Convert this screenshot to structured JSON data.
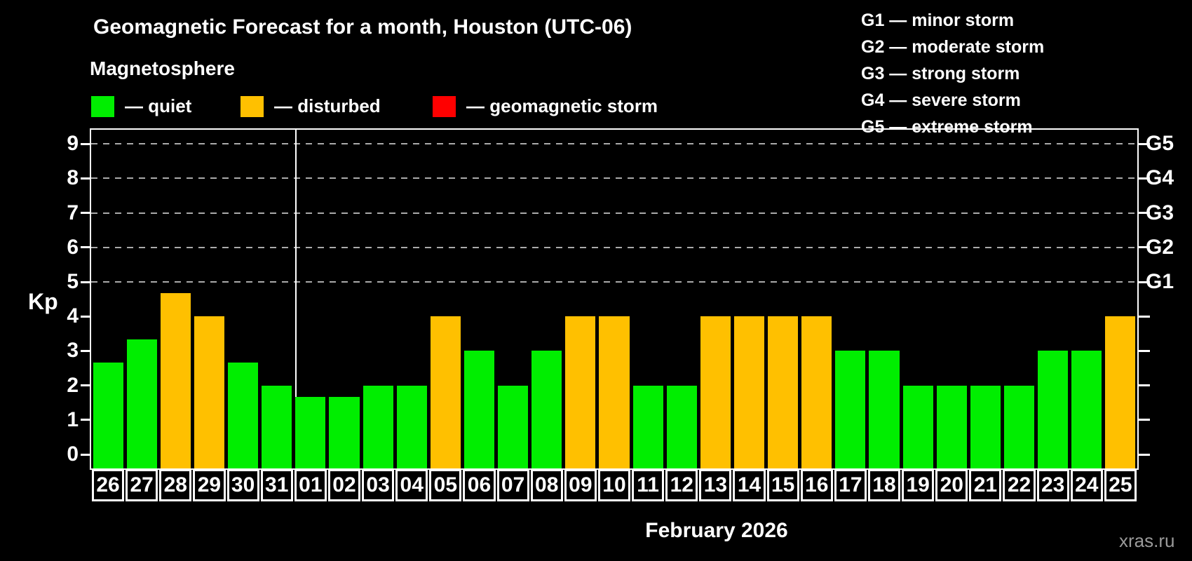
{
  "chart_data": {
    "type": "bar",
    "title": "Geomagnetic Forecast for a month, Houston (UTC-06)",
    "subtitle": "Magnetosphere",
    "xlabel": "February 2026",
    "ylabel": "Kp",
    "ylim": [
      0,
      9
    ],
    "grid": "dashed horizontal lines at Kp 5-9 only",
    "categories": [
      "26",
      "27",
      "28",
      "29",
      "30",
      "31",
      "01",
      "02",
      "03",
      "04",
      "05",
      "06",
      "07",
      "08",
      "09",
      "10",
      "11",
      "12",
      "13",
      "14",
      "15",
      "16",
      "17",
      "18",
      "19",
      "20",
      "21",
      "22",
      "23",
      "24",
      "25"
    ],
    "values": [
      2.67,
      3.33,
      4.67,
      4,
      2.67,
      2,
      1.67,
      1.67,
      2,
      2,
      4,
      3,
      2,
      3,
      4,
      4,
      2,
      2,
      4,
      4,
      4,
      4,
      3,
      3,
      2,
      2,
      2,
      2,
      3,
      3,
      4
    ],
    "statuses": [
      "quiet",
      "quiet",
      "disturbed",
      "disturbed",
      "quiet",
      "quiet",
      "quiet",
      "quiet",
      "quiet",
      "quiet",
      "disturbed",
      "quiet",
      "quiet",
      "quiet",
      "disturbed",
      "disturbed",
      "quiet",
      "quiet",
      "disturbed",
      "disturbed",
      "disturbed",
      "disturbed",
      "quiet",
      "quiet",
      "quiet",
      "quiet",
      "quiet",
      "quiet",
      "quiet",
      "quiet",
      "disturbed"
    ],
    "month_separator_after_category": "31",
    "y_ticks": [
      0,
      1,
      2,
      3,
      4,
      5,
      6,
      7,
      8,
      9
    ],
    "right_axis_labels": [
      {
        "kp": 5,
        "label": "G1"
      },
      {
        "kp": 6,
        "label": "G2"
      },
      {
        "kp": 7,
        "label": "G3"
      },
      {
        "kp": 8,
        "label": "G4"
      },
      {
        "kp": 9,
        "label": "G5"
      }
    ],
    "legend": [
      {
        "status": "quiet",
        "label": "— quiet"
      },
      {
        "status": "disturbed",
        "label": "— disturbed"
      },
      {
        "status": "storm",
        "label": "— geomagnetic storm"
      }
    ],
    "storm_scale": [
      "G1 — minor storm",
      "G2 — moderate storm",
      "G3 — strong storm",
      "G4 — severe storm",
      "G5 — extreme storm"
    ],
    "colors": {
      "quiet": "#00ee00",
      "disturbed": "#ffc000",
      "storm": "#ff0000",
      "grid": "#aaaaaa"
    },
    "watermark": "xras.ru",
    "legend_position": "top-left",
    "storm_scale_position": "top-right"
  }
}
